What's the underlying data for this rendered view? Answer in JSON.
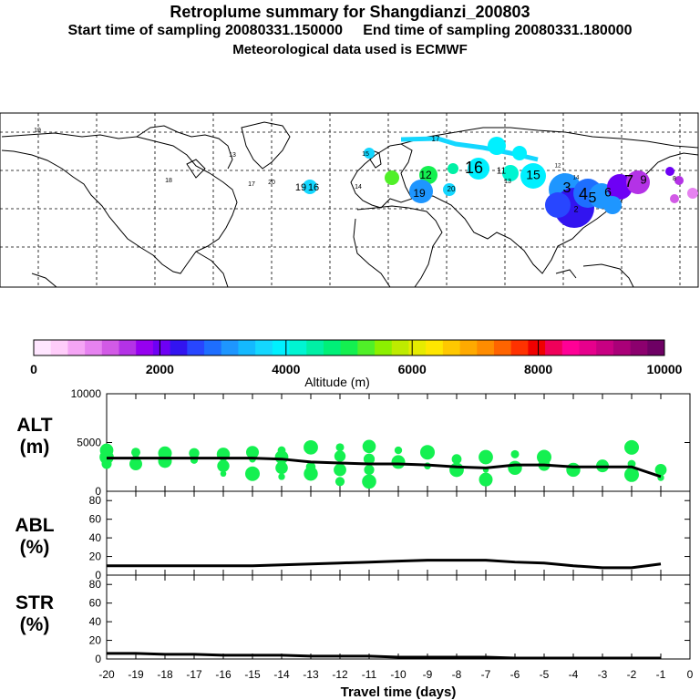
{
  "header": {
    "title": "Retroplume summary for Shangdianzi_200803",
    "sampling_line": "Start time of sampling 20080331.150000     End time of sampling 20080331.180000",
    "met_line": "Meteorological data used is ECMWF"
  },
  "colorbar": {
    "label": "Altitude (m)",
    "ticks": [
      "0",
      "2000",
      "4000",
      "6000",
      "8000",
      "10000"
    ],
    "colors": [
      "#ffe6ff",
      "#ffcdfa",
      "#f5a5f5",
      "#e682f0",
      "#d25ae6",
      "#b432e6",
      "#9600f0",
      "#6e00f5",
      "#3214f0",
      "#2846ff",
      "#1e6eff",
      "#1e96ff",
      "#14b9ff",
      "#14d7ff",
      "#00f0ff",
      "#00f5d2",
      "#00f0a5",
      "#00f078",
      "#14f050",
      "#50f028",
      "#8cf000",
      "#beeb00",
      "#e6eb00",
      "#ffe600",
      "#ffc800",
      "#ffaa00",
      "#ff8c00",
      "#ff6400",
      "#ff3200",
      "#f00000",
      "#f0005a",
      "#ff0096",
      "#e6008c",
      "#c80082",
      "#aa0078",
      "#8c006e",
      "#6e0064"
    ]
  },
  "map": {
    "labels": [
      {
        "t": "19",
        "c": "#00f0a5"
      },
      {
        "t": "13",
        "c": "#00f078"
      },
      {
        "t": "18",
        "c": "#14d7ff"
      },
      {
        "t": "17",
        "c": "#00f0ff"
      },
      {
        "t": "20",
        "c": "#00f0ff"
      },
      {
        "t": "19",
        "c": "#00f0ff"
      },
      {
        "t": "16",
        "c": "#14d7ff"
      },
      {
        "t": "15",
        "c": "#00f0ff"
      },
      {
        "t": "14",
        "c": "#00f0ff"
      },
      {
        "t": "12",
        "c": "#14f050"
      },
      {
        "t": "16",
        "c": "#00f0ff"
      },
      {
        "t": "11",
        "c": "#14f050"
      },
      {
        "t": "13",
        "c": "#00f5d2"
      },
      {
        "t": "15",
        "c": "#00f0ff"
      },
      {
        "t": "17",
        "c": "#14d7ff"
      },
      {
        "t": "19",
        "c": "#00f0ff"
      },
      {
        "t": "12",
        "c": "#00f0ff"
      },
      {
        "t": "14",
        "c": "#14b9ff"
      },
      {
        "t": "3",
        "c": "#2846ff"
      },
      {
        "t": "4",
        "c": "#1e6eff"
      },
      {
        "t": "5",
        "c": "#3214f0"
      },
      {
        "t": "6",
        "c": "#1e96ff"
      },
      {
        "t": "7",
        "c": "#9600f0"
      },
      {
        "t": "9",
        "c": "#b432e6"
      },
      {
        "t": "2",
        "c": "#14b9ff"
      },
      {
        "t": "8",
        "c": "#b432e6"
      },
      {
        "t": "20",
        "c": "#14b9ff"
      }
    ]
  },
  "chart_data": [
    {
      "type": "scatter",
      "panel": "ALT",
      "ylabel": "ALT\n(m)",
      "ylim": [
        0,
        10000
      ],
      "yticks": [
        "10000",
        "5000",
        "0"
      ],
      "x": [
        -20,
        -19,
        -18,
        -17,
        -16,
        -15,
        -14,
        -13,
        -12,
        -11,
        -10,
        -9,
        -8,
        -7,
        -6,
        -5,
        -4,
        -3,
        -2,
        -1
      ],
      "mean_altitude": [
        3400,
        3400,
        3400,
        3400,
        3400,
        3400,
        3300,
        3000,
        2900,
        2800,
        2800,
        2700,
        2500,
        2400,
        2700,
        2700,
        2500,
        2500,
        2500,
        1500
      ],
      "points": [
        [
          -20,
          4200
        ],
        [
          -20,
          3500
        ],
        [
          -20,
          2800
        ],
        [
          -19,
          4000
        ],
        [
          -19,
          3200
        ],
        [
          -19,
          2800
        ],
        [
          -18,
          3900
        ],
        [
          -18,
          3100
        ],
        [
          -17,
          3900
        ],
        [
          -17,
          3200
        ],
        [
          -16,
          3800
        ],
        [
          -16,
          2600
        ],
        [
          -16,
          1800
        ],
        [
          -15,
          4000
        ],
        [
          -15,
          3300
        ],
        [
          -15,
          1800
        ],
        [
          -14,
          4200
        ],
        [
          -14,
          3500
        ],
        [
          -14,
          2400
        ],
        [
          -14,
          1500
        ],
        [
          -13,
          4500
        ],
        [
          -13,
          2500
        ],
        [
          -13,
          1800
        ],
        [
          -12,
          4500
        ],
        [
          -12,
          3600
        ],
        [
          -12,
          2200
        ],
        [
          -12,
          1000
        ],
        [
          -11,
          4600
        ],
        [
          -11,
          3300
        ],
        [
          -11,
          2200
        ],
        [
          -11,
          1000
        ],
        [
          -10,
          4200
        ],
        [
          -10,
          3000
        ],
        [
          -9,
          4000
        ],
        [
          -9,
          2600
        ],
        [
          -8,
          3300
        ],
        [
          -8,
          2200
        ],
        [
          -7,
          3500
        ],
        [
          -7,
          2200
        ],
        [
          -7,
          1200
        ],
        [
          -6,
          3800
        ],
        [
          -6,
          2400
        ],
        [
          -5,
          2700
        ],
        [
          -5,
          3500
        ],
        [
          -4,
          2200
        ],
        [
          -3,
          2600
        ],
        [
          -2,
          4500
        ],
        [
          -2,
          2800
        ],
        [
          -2,
          1700
        ],
        [
          -1,
          2200
        ],
        [
          -1,
          1400
        ]
      ]
    },
    {
      "type": "line",
      "panel": "ABL",
      "ylabel": "ABL\n(%)",
      "ylim": [
        0,
        90
      ],
      "yticks": [
        "80",
        "60",
        "40",
        "20",
        "0"
      ],
      "x": [
        -20,
        -19,
        -18,
        -17,
        -16,
        -15,
        -14,
        -13,
        -12,
        -11,
        -10,
        -9,
        -8,
        -7,
        -6,
        -5,
        -4,
        -3,
        -2,
        -1
      ],
      "values": [
        10,
        10,
        10,
        10,
        10,
        10,
        11,
        12,
        13,
        14,
        15,
        16,
        16,
        16,
        14,
        13,
        10,
        8,
        8,
        12
      ]
    },
    {
      "type": "line",
      "panel": "STR",
      "ylabel": "STR\n(%)",
      "ylim": [
        0,
        90
      ],
      "yticks": [
        "80",
        "60",
        "40",
        "20",
        "0"
      ],
      "x": [
        -20,
        -19,
        -18,
        -17,
        -16,
        -15,
        -14,
        -13,
        -12,
        -11,
        -10,
        -9,
        -8,
        -7,
        -6,
        -5,
        -4,
        -3,
        -2,
        -1
      ],
      "values": [
        6,
        6,
        5,
        5,
        4,
        4,
        4,
        3,
        3,
        3,
        2,
        2,
        2,
        2,
        1,
        1,
        1,
        1,
        1,
        1
      ],
      "xlabel": "Travel time (days)",
      "xticks": [
        "-20",
        "-19",
        "-18",
        "-17",
        "-16",
        "-15",
        "-14",
        "-13",
        "-12",
        "-11",
        "-10",
        "-9",
        "-8",
        "-7",
        "-6",
        "-5",
        "-4",
        "-3",
        "-2",
        "-1",
        "0"
      ]
    }
  ]
}
